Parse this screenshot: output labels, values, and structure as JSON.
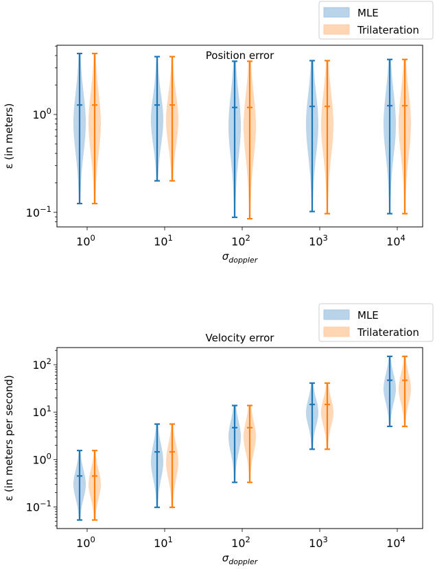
{
  "colors": {
    "mle": "#1f77b4",
    "trilateration": "#ff7f0e",
    "mle_fill": "#b9d3e8",
    "tri_fill": "#ffd6b3"
  },
  "chart_data": [
    {
      "type": "violin",
      "title": "Position error",
      "xlabel": "σ",
      "xlabel_sub": "doppler",
      "ylabel": "ε (in meters)",
      "yscale": "log",
      "ylim": [
        0.071,
        5.1
      ],
      "yticks": [
        {
          "base": "10",
          "exp": "−1",
          "value": 0.1
        },
        {
          "base": "10",
          "exp": "0",
          "value": 1
        }
      ],
      "categories": [
        {
          "base": "10",
          "exp": "0"
        },
        {
          "base": "10",
          "exp": "1"
        },
        {
          "base": "10",
          "exp": "2"
        },
        {
          "base": "10",
          "exp": "3"
        },
        {
          "base": "10",
          "exp": "4"
        }
      ],
      "legend": {
        "position": "top-right",
        "entries": [
          "MLE",
          "Trilateration"
        ]
      },
      "series": [
        {
          "name": "MLE",
          "min": [
            0.123,
            0.21,
            0.089,
            0.102,
            0.097
          ],
          "median": [
            1.25,
            1.25,
            1.18,
            1.21,
            1.23
          ],
          "max": [
            4.2,
            3.9,
            3.5,
            3.55,
            3.65
          ]
        },
        {
          "name": "Trilateration",
          "min": [
            0.123,
            0.21,
            0.086,
            0.097,
            0.097
          ],
          "median": [
            1.25,
            1.25,
            1.18,
            1.21,
            1.23
          ],
          "max": [
            4.2,
            3.9,
            3.5,
            3.55,
            3.65
          ]
        }
      ]
    },
    {
      "type": "violin",
      "title": "Velocity error",
      "xlabel": "σ",
      "xlabel_sub": "doppler",
      "ylabel": "ε (in meters per second)",
      "yscale": "log",
      "ylim": [
        0.035,
        230
      ],
      "yticks": [
        {
          "base": "10",
          "exp": "−1",
          "value": 0.1
        },
        {
          "base": "10",
          "exp": "0",
          "value": 1
        },
        {
          "base": "10",
          "exp": "1",
          "value": 10
        },
        {
          "base": "10",
          "exp": "2",
          "value": 100
        }
      ],
      "categories": [
        {
          "base": "10",
          "exp": "0"
        },
        {
          "base": "10",
          "exp": "1"
        },
        {
          "base": "10",
          "exp": "2"
        },
        {
          "base": "10",
          "exp": "3"
        },
        {
          "base": "10",
          "exp": "4"
        }
      ],
      "legend": {
        "position": "top-right",
        "entries": [
          "MLE",
          "Trilateration"
        ]
      },
      "series": [
        {
          "name": "MLE",
          "min": [
            0.053,
            0.098,
            0.33,
            1.65,
            5.0
          ],
          "median": [
            0.45,
            1.45,
            4.7,
            14.5,
            47
          ],
          "max": [
            1.55,
            5.6,
            13.8,
            41,
            150
          ]
        },
        {
          "name": "Trilateration",
          "min": [
            0.053,
            0.098,
            0.33,
            1.65,
            5.0
          ],
          "median": [
            0.45,
            1.45,
            4.7,
            14.5,
            47
          ],
          "max": [
            1.55,
            5.6,
            13.8,
            41,
            150
          ]
        }
      ]
    }
  ]
}
